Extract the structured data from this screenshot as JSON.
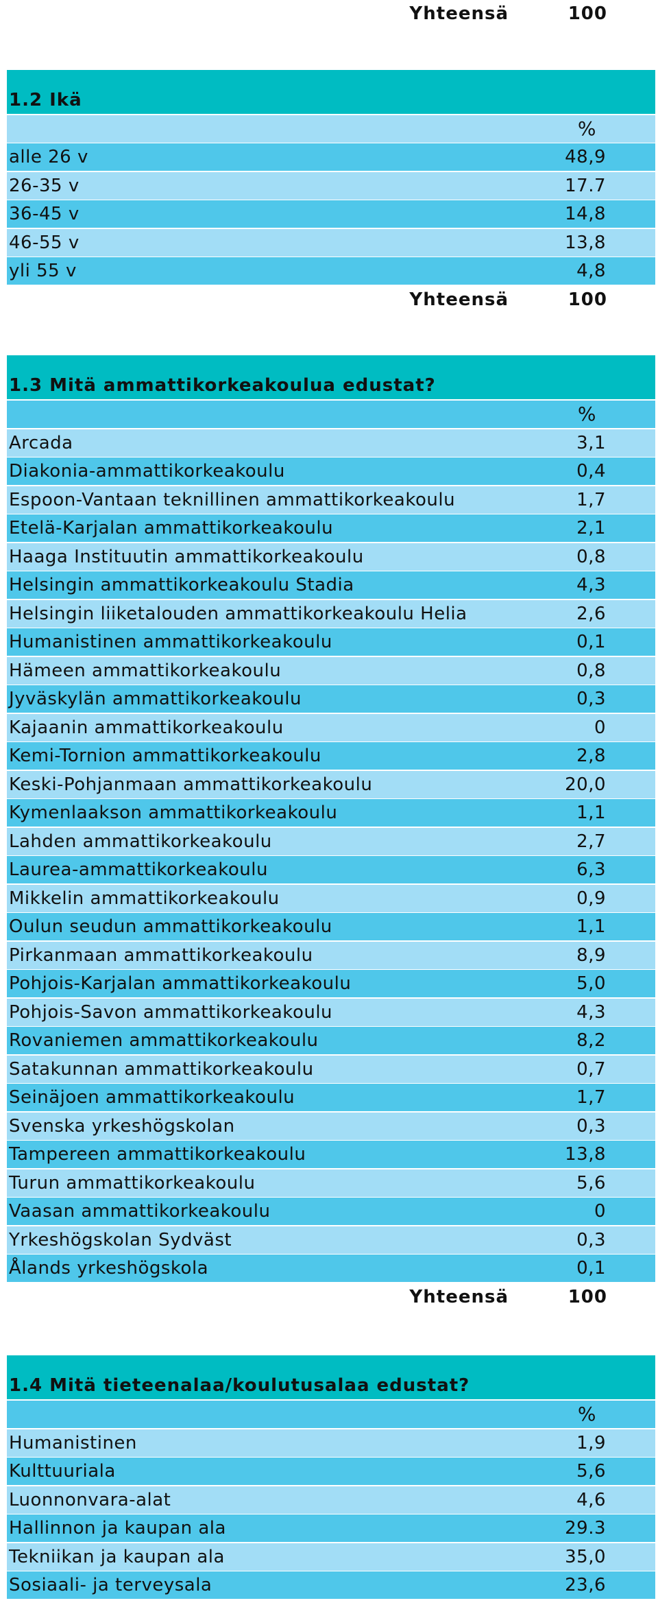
{
  "top_total": {
    "label": "Yhteensä",
    "value": "100"
  },
  "sections": [
    {
      "title": "1.2 Ikä",
      "percent_header": "%",
      "rows": [
        {
          "label": "alle 26 v",
          "value": "48,9"
        },
        {
          "label": "26-35 v",
          "value": "17.7"
        },
        {
          "label": "36-45 v",
          "value": "14,8"
        },
        {
          "label": "46-55 v",
          "value": "13,8"
        },
        {
          "label": "yli 55 v",
          "value": "4,8"
        }
      ],
      "total": {
        "label": "Yhteensä",
        "value": "100"
      }
    },
    {
      "title": "1.3 Mitä ammattikorkeakoulua edustat?",
      "percent_header": "%",
      "rows": [
        {
          "label": "Arcada",
          "value": "3,1"
        },
        {
          "label": "Diakonia-ammattikorkeakoulu",
          "value": "0,4"
        },
        {
          "label": "Espoon-Vantaan teknillinen ammattikorkeakoulu",
          "value": "1,7"
        },
        {
          "label": "Etelä-Karjalan ammattikorkeakoulu",
          "value": "2,1"
        },
        {
          "label": "Haaga Instituutin ammattikorkeakoulu",
          "value": "0,8"
        },
        {
          "label": "Helsingin ammattikorkeakoulu Stadia",
          "value": "4,3"
        },
        {
          "label": "Helsingin liiketalouden ammattikorkeakoulu Helia",
          "value": "2,6"
        },
        {
          "label": "Humanistinen ammattikorkeakoulu",
          "value": "0,1"
        },
        {
          "label": "Hämeen ammattikorkeakoulu",
          "value": "0,8"
        },
        {
          "label": "Jyväskylän ammattikorkeakoulu",
          "value": "0,3"
        },
        {
          "label": "Kajaanin ammattikorkeakoulu",
          "value": "0"
        },
        {
          "label": "Kemi-Tornion ammattikorkeakoulu",
          "value": "2,8"
        },
        {
          "label": "Keski-Pohjanmaan ammattikorkeakoulu",
          "value": "20,0"
        },
        {
          "label": "Kymenlaakson ammattikorkeakoulu",
          "value": "1,1"
        },
        {
          "label": "Lahden ammattikorkeakoulu",
          "value": "2,7"
        },
        {
          "label": "Laurea-ammattikorkeakoulu",
          "value": "6,3"
        },
        {
          "label": "Mikkelin ammattikorkeakoulu",
          "value": "0,9"
        },
        {
          "label": "Oulun seudun ammattikorkeakoulu",
          "value": "1,1"
        },
        {
          "label": "Pirkanmaan ammattikorkeakoulu",
          "value": "8,9"
        },
        {
          "label": "Pohjois-Karjalan ammattikorkeakoulu",
          "value": "5,0"
        },
        {
          "label": "Pohjois-Savon ammattikorkeakoulu",
          "value": "4,3"
        },
        {
          "label": "Rovaniemen ammattikorkeakoulu",
          "value": "8,2"
        },
        {
          "label": "Satakunnan ammattikorkeakoulu",
          "value": "0,7"
        },
        {
          "label": "Seinäjoen ammattikorkeakoulu",
          "value": "1,7"
        },
        {
          "label": "Svenska yrkeshögskolan",
          "value": "0,3"
        },
        {
          "label": "Tampereen ammattikorkeakoulu",
          "value": "13,8"
        },
        {
          "label": "Turun ammattikorkeakoulu",
          "value": "5,6"
        },
        {
          "label": "Vaasan ammattikorkeakoulu",
          "value": "0"
        },
        {
          "label": "Yrkeshögskolan Sydväst",
          "value": "0,3"
        },
        {
          "label": "Ålands yrkeshögskola",
          "value": "0,1"
        }
      ],
      "total": {
        "label": "Yhteensä",
        "value": "100"
      }
    },
    {
      "title": "1.4 Mitä tieteenalaa/koulutusalaa edustat?",
      "percent_header": "%",
      "rows": [
        {
          "label": "Humanistinen",
          "value": "1,9"
        },
        {
          "label": "Kulttuuriala",
          "value": "5,6"
        },
        {
          "label": "Luonnonvara-alat",
          "value": "4,6"
        },
        {
          "label": "Hallinnon ja kaupan ala",
          "value": "29.3"
        },
        {
          "label": "Tekniikan ja kaupan ala",
          "value": "35,0"
        },
        {
          "label": "Sosiaali- ja terveysala",
          "value": "23,6"
        }
      ]
    }
  ],
  "colors": {
    "header": "#00bcc2",
    "row_light": "#a2ddf6",
    "row_mid": "#4fc7ea"
  }
}
